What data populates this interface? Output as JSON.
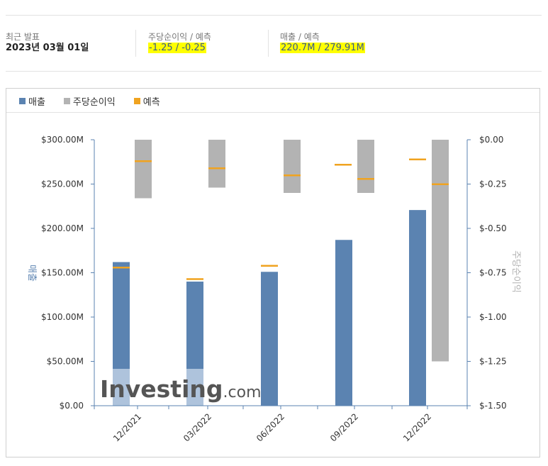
{
  "header": {
    "release_label": "최근 발표",
    "release_date": "2023년 03월 01일",
    "eps_label": "주당순이익 / 예측",
    "eps_value": "-1.25 / -0.25",
    "revenue_label": "매출 / 예측",
    "revenue_value": "220.7M / 279.91M"
  },
  "legend": {
    "revenue": "매출",
    "eps": "주당순이익",
    "forecast": "예측"
  },
  "colors": {
    "revenue": "#5b83b1",
    "eps": "#b3b3b3",
    "forecast": "#f0a320",
    "highlight": "#ffff00"
  },
  "watermark": {
    "brand": "Investing",
    "suffix": ".com"
  },
  "chart_data": {
    "type": "bar",
    "categories": [
      "12/2021",
      "03/2022",
      "06/2022",
      "09/2022",
      "12/2022"
    ],
    "ylabel": "매출",
    "y2label": "주당순이익",
    "ylim": [
      0,
      300000000
    ],
    "y2lim": [
      -1.5,
      0
    ],
    "y_ticks": [
      "$300.00M",
      "$250.00M",
      "$200.00M",
      "$150.00M",
      "$100.00M",
      "$50.00M",
      "$0.00"
    ],
    "y2_ticks": [
      "$0.00",
      "$-0.25",
      "$-0.50",
      "$-0.75",
      "$-1.00",
      "$-1.25",
      "$-1.50"
    ],
    "grid": false,
    "legend_position": "top-left",
    "series": [
      {
        "name": "매출",
        "axis": "left",
        "values": [
          162000000,
          140000000,
          151000000,
          187000000,
          220700000
        ]
      },
      {
        "name": "매출 예측",
        "axis": "left",
        "values": [
          156000000,
          143000000,
          158000000,
          null,
          null
        ]
      },
      {
        "name": "주당순이익",
        "axis": "right",
        "values": [
          -0.33,
          -0.27,
          -0.3,
          -0.3,
          -1.25
        ]
      },
      {
        "name": "주당순이익 예측",
        "axis": "right",
        "values": [
          -0.12,
          -0.16,
          -0.2,
          -0.14,
          -0.11
        ]
      },
      {
        "name": "주당순이익 예측 (2)",
        "axis": "right",
        "values": [
          null,
          null,
          null,
          -0.22,
          -0.25
        ]
      }
    ]
  }
}
